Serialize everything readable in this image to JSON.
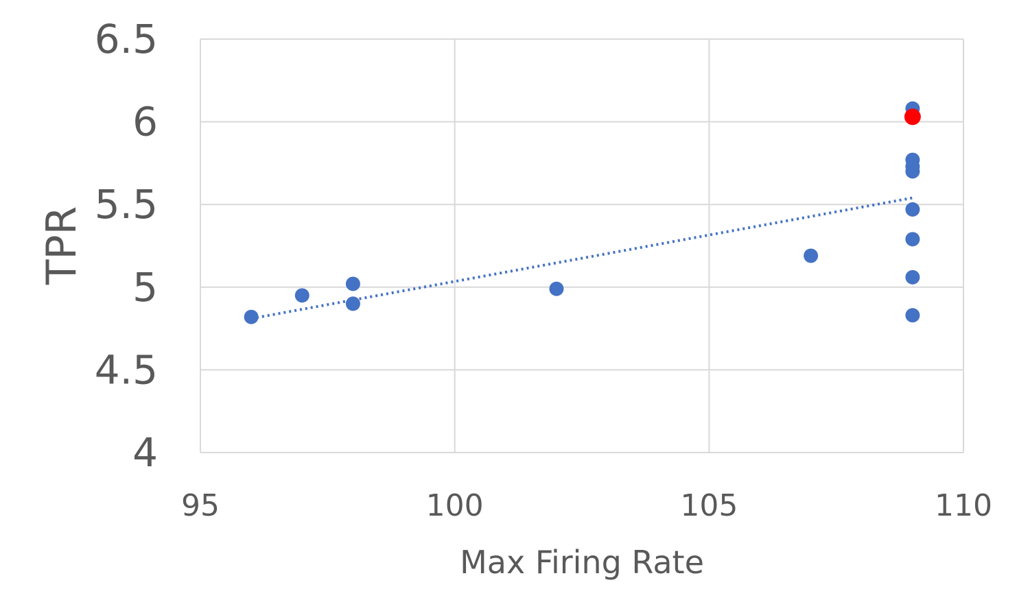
{
  "chart_data": {
    "type": "scatter",
    "title": "",
    "xlabel": "Max Firing Rate",
    "ylabel": "TPR",
    "xlim": [
      95,
      110
    ],
    "ylim": [
      4,
      6.5
    ],
    "xticks": [
      "95",
      "100",
      "105",
      "110"
    ],
    "yticks": [
      "4",
      "4.5",
      "5",
      "5.5",
      "6",
      "6.5"
    ],
    "grid": true,
    "legend": "none",
    "colors": {
      "points": "#4472c4",
      "highlight": "#ff0000",
      "trendline": "#4472c4",
      "grid": "#d9d9d9",
      "text": "#595959"
    },
    "series": [
      {
        "x": [
          96,
          97,
          98,
          98,
          102,
          107,
          109,
          109,
          109,
          109,
          109,
          109,
          109,
          109
        ],
        "y": [
          4.82,
          4.95,
          5.02,
          4.9,
          4.99,
          5.19,
          6.08,
          5.77,
          5.7,
          5.47,
          5.29,
          5.06,
          4.83,
          5.73
        ]
      },
      {
        "x": [
          109
        ],
        "y": [
          6.03
        ],
        "style": "highlight"
      }
    ],
    "trendline": {
      "type": "linear",
      "style": "dotted",
      "x": [
        96,
        109
      ],
      "y": [
        4.81,
        5.54
      ]
    }
  }
}
